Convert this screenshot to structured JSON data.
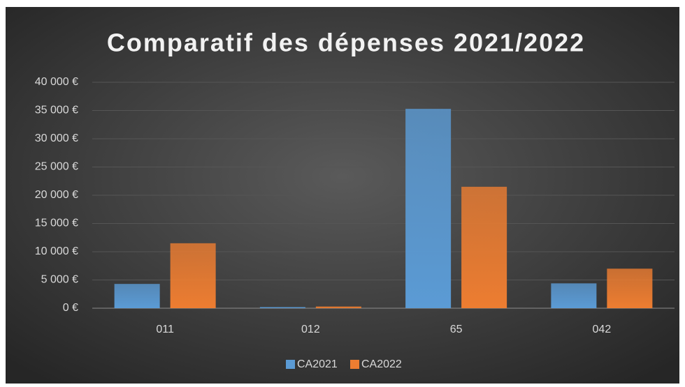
{
  "chart_data": {
    "type": "bar",
    "title": "Comparatif des dépenses 2021/2022",
    "categories": [
      "011",
      "012",
      "65",
      "042"
    ],
    "series": [
      {
        "name": "CA2021",
        "color": "#5b9bd5",
        "values": [
          4300,
          200,
          35300,
          4400
        ]
      },
      {
        "name": "CA2022",
        "color": "#ed7d31",
        "values": [
          11500,
          300,
          21500,
          7000
        ]
      }
    ],
    "ylim": [
      0,
      40000
    ],
    "yticks": [
      {
        "value": 0,
        "label": "0 €"
      },
      {
        "value": 5000,
        "label": "5 000 €"
      },
      {
        "value": 10000,
        "label": "10 000 €"
      },
      {
        "value": 15000,
        "label": "15 000 €"
      },
      {
        "value": 20000,
        "label": "20 000 €"
      },
      {
        "value": 25000,
        "label": "25 000 €"
      },
      {
        "value": 30000,
        "label": "30 000 €"
      },
      {
        "value": 35000,
        "label": "35 000 €"
      },
      {
        "value": 40000,
        "label": "40 000 €"
      }
    ],
    "grid": true,
    "legend": "bottom"
  }
}
